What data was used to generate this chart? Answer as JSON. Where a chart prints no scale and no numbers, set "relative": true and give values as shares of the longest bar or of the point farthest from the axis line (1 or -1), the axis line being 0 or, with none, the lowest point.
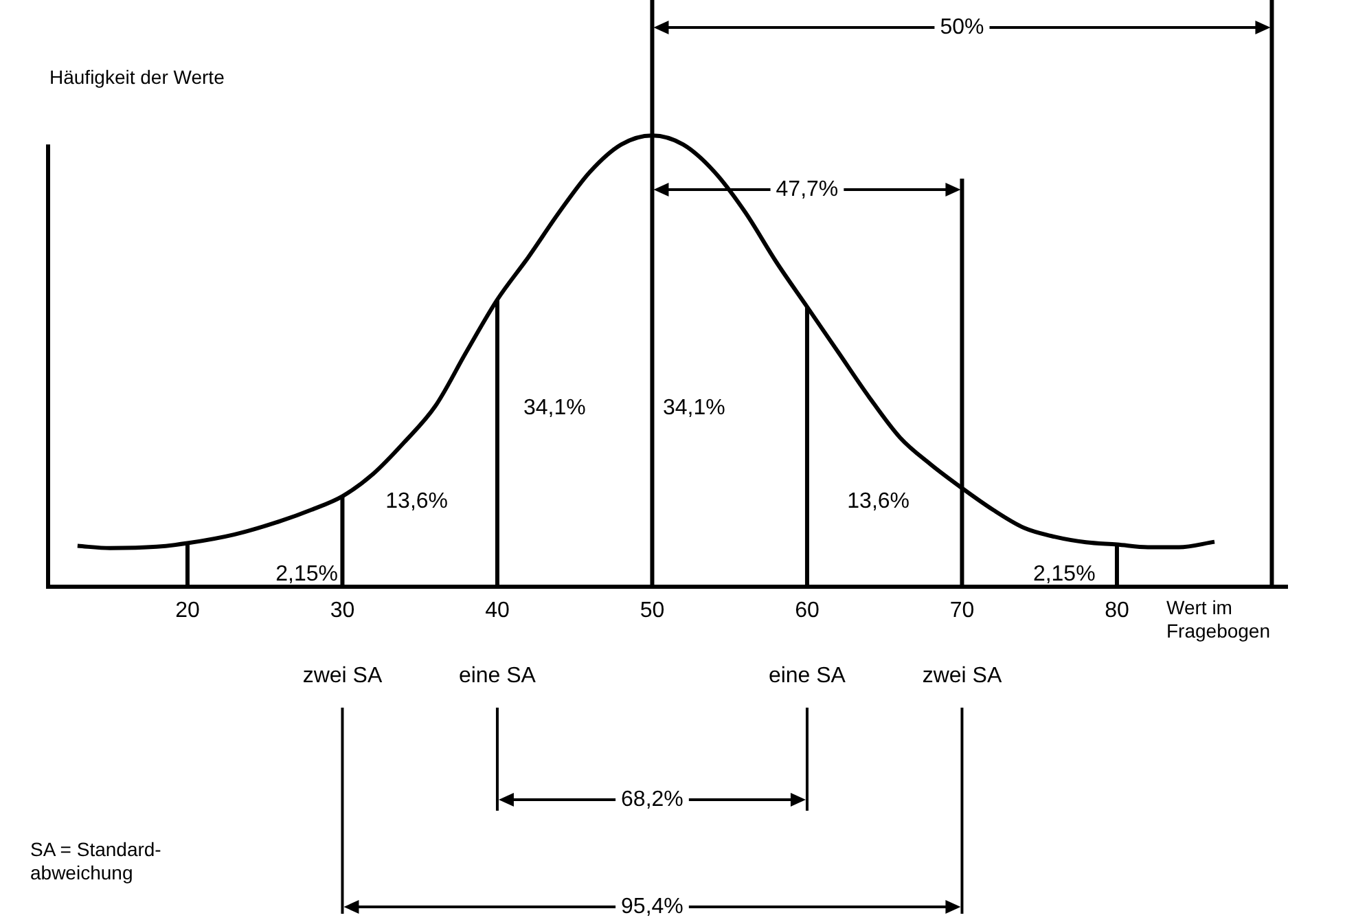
{
  "chart_data": {
    "type": "line",
    "relative": true,
    "xlabel": "Wert im Fragebogen",
    "ylabel": "Häufigkeit der Werte",
    "xlim": [
      11,
      91
    ],
    "xticks": [
      20,
      30,
      40,
      50,
      60,
      70,
      80
    ],
    "tick_labels": "x",
    "grid": false,
    "legend": false,
    "marker": "none",
    "line_style": "solid",
    "series": [
      {
        "color": "#000000",
        "x": [
          12.9,
          15,
          18,
          20,
          23,
          26,
          28,
          30,
          32,
          34,
          36,
          38,
          40,
          42,
          44,
          46,
          48,
          50,
          52,
          54,
          56,
          58,
          60,
          62,
          64,
          66,
          68,
          70,
          72,
          74,
          76,
          78,
          80,
          82,
          84,
          86.3
        ],
        "values": [
          0.09,
          0.085,
          0.088,
          0.096,
          0.115,
          0.145,
          0.17,
          0.2,
          0.25,
          0.32,
          0.4,
          0.52,
          0.636,
          0.73,
          0.83,
          0.92,
          0.98,
          1,
          0.98,
          0.92,
          0.83,
          0.72,
          0.62,
          0.52,
          0.42,
          0.33,
          0.27,
          0.218,
          0.17,
          0.13,
          0.11,
          0.098,
          0.093,
          0.087,
          0.087,
          0.099
        ]
      }
    ],
    "ref_lines": [
      {
        "axis": "x",
        "value": 20
      },
      {
        "axis": "x",
        "value": 30
      },
      {
        "axis": "x",
        "value": 40
      },
      {
        "axis": "x",
        "value": 50
      },
      {
        "axis": "x",
        "value": 60
      },
      {
        "axis": "x",
        "value": 70
      },
      {
        "axis": "x",
        "value": 80
      },
      {
        "axis": "x",
        "value": 90
      }
    ],
    "annotations": [
      "2,15%",
      "13,6%",
      "34,1%",
      "34,1%",
      "13,6%",
      "2,15%",
      "zwei SA",
      "eine SA",
      "eine SA",
      "zwei SA",
      "50%",
      "47,7%",
      "68,2%",
      "95,4%",
      "SA = Standard-abweichung"
    ]
  }
}
